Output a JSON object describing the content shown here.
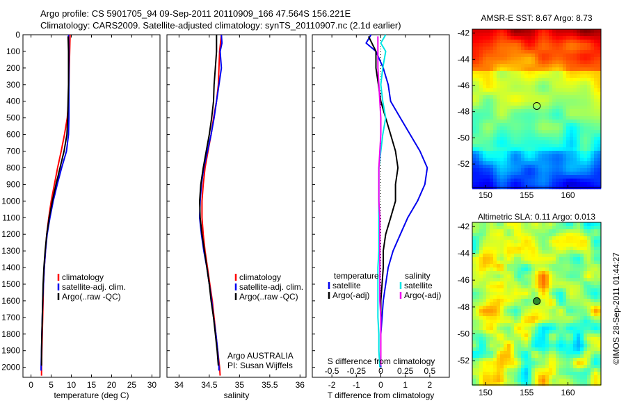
{
  "header": {
    "line1": "Argo profile: CS 5901705_94 09-Sep-2011 20110909_166 47.564S 156.221E",
    "line2": "Climatology: CARS2009. Satellite-adjusted climatology: synTS_20110907.nc (2.1d earlier)"
  },
  "chart_data": [
    {
      "type": "line",
      "xlabel": "temperature (deg C)",
      "ylabel": "",
      "xlim": [
        -2,
        32
      ],
      "ylim": [
        2060,
        0
      ],
      "x_ticks": [
        0,
        5,
        10,
        15,
        20,
        25,
        30
      ],
      "y_ticks": [
        0,
        100,
        200,
        300,
        400,
        500,
        600,
        700,
        800,
        900,
        1000,
        1100,
        1200,
        1300,
        1400,
        1500,
        1600,
        1700,
        1800,
        1900,
        2000
      ],
      "legend": [
        "climatology",
        "satellite-adj. clim.",
        "Argo(..raw -QC)"
      ],
      "legend_position": "lower-right",
      "series": [
        {
          "name": "climatology",
          "color": "#ff0000",
          "points": [
            [
              9.7,
              0
            ],
            [
              9.6,
              100
            ],
            [
              9.5,
              200
            ],
            [
              9.4,
              300
            ],
            [
              9.3,
              400
            ],
            [
              9.0,
              500
            ],
            [
              8.3,
              600
            ],
            [
              7.5,
              700
            ],
            [
              6.6,
              800
            ],
            [
              5.8,
              900
            ],
            [
              5.0,
              1000
            ],
            [
              4.4,
              1100
            ],
            [
              3.9,
              1200
            ],
            [
              3.6,
              1300
            ],
            [
              3.3,
              1400
            ],
            [
              3.1,
              1500
            ],
            [
              3.0,
              1600
            ],
            [
              2.9,
              1700
            ],
            [
              2.8,
              1800
            ],
            [
              2.7,
              1900
            ],
            [
              2.6,
              2000
            ],
            [
              2.6,
              2050
            ]
          ]
        },
        {
          "name": "satellite-adj. clim.",
          "color": "#0000ee",
          "points": [
            [
              9.3,
              0
            ],
            [
              9.4,
              100
            ],
            [
              9.4,
              200
            ],
            [
              9.4,
              300
            ],
            [
              9.4,
              400
            ],
            [
              9.4,
              500
            ],
            [
              9.3,
              600
            ],
            [
              8.8,
              700
            ],
            [
              7.6,
              800
            ],
            [
              6.5,
              900
            ],
            [
              5.5,
              1000
            ],
            [
              4.7,
              1100
            ],
            [
              4.0,
              1200
            ],
            [
              3.6,
              1300
            ],
            [
              3.3,
              1400
            ],
            [
              3.1,
              1500
            ],
            [
              2.9,
              1600
            ],
            [
              2.8,
              1700
            ],
            [
              2.7,
              1800
            ],
            [
              2.6,
              1900
            ],
            [
              2.5,
              2000
            ],
            [
              2.5,
              2020
            ]
          ]
        },
        {
          "name": "Argo(..raw -QC)",
          "color": "#000000",
          "points": [
            [
              9.2,
              10
            ],
            [
              9.3,
              100
            ],
            [
              9.3,
              200
            ],
            [
              9.3,
              300
            ],
            [
              9.2,
              400
            ],
            [
              9.1,
              500
            ],
            [
              8.9,
              600
            ],
            [
              8.2,
              700
            ],
            [
              7.2,
              800
            ],
            [
              6.2,
              900
            ],
            [
              5.3,
              1000
            ],
            [
              4.5,
              1100
            ],
            [
              3.9,
              1200
            ],
            [
              3.5,
              1300
            ],
            [
              3.2,
              1400
            ],
            [
              3.0,
              1500
            ],
            [
              2.9,
              1600
            ],
            [
              2.8,
              1700
            ],
            [
              2.7,
              1800
            ],
            [
              2.6,
              1900
            ],
            [
              2.6,
              1990
            ]
          ]
        }
      ]
    },
    {
      "type": "line",
      "xlabel": "salinity",
      "ylabel": "",
      "xlim": [
        33.8,
        36.1
      ],
      "ylim": [
        2060,
        0
      ],
      "x_ticks": [
        34,
        34.5,
        35,
        35.5,
        36
      ],
      "legend": [
        "climatology",
        "satellite-adj. clim.",
        "Argo(..raw -QC)"
      ],
      "legend_position": "lower-right",
      "annotation": [
        "Argo AUSTRALIA",
        "PI: Susan Wijffels"
      ],
      "series": [
        {
          "name": "climatology",
          "color": "#ff0000",
          "points": [
            [
              34.7,
              0
            ],
            [
              34.67,
              100
            ],
            [
              34.66,
              200
            ],
            [
              34.65,
              300
            ],
            [
              34.62,
              400
            ],
            [
              34.57,
              500
            ],
            [
              34.53,
              600
            ],
            [
              34.48,
              700
            ],
            [
              34.43,
              800
            ],
            [
              34.4,
              900
            ],
            [
              34.38,
              1000
            ],
            [
              34.38,
              1100
            ],
            [
              34.4,
              1200
            ],
            [
              34.43,
              1300
            ],
            [
              34.47,
              1400
            ],
            [
              34.51,
              1500
            ],
            [
              34.55,
              1600
            ],
            [
              34.58,
              1700
            ],
            [
              34.61,
              1800
            ],
            [
              34.64,
              1900
            ],
            [
              34.67,
              2000
            ],
            [
              34.68,
              2050
            ]
          ]
        },
        {
          "name": "satellite-adj. clim.",
          "color": "#0000ee",
          "points": [
            [
              34.7,
              0
            ],
            [
              34.71,
              50
            ],
            [
              34.68,
              100
            ],
            [
              34.7,
              200
            ],
            [
              34.66,
              300
            ],
            [
              34.62,
              400
            ],
            [
              34.58,
              500
            ],
            [
              34.53,
              600
            ],
            [
              34.47,
              700
            ],
            [
              34.41,
              800
            ],
            [
              34.37,
              900
            ],
            [
              34.35,
              1000
            ],
            [
              34.34,
              1100
            ],
            [
              34.37,
              1200
            ],
            [
              34.41,
              1300
            ],
            [
              34.46,
              1400
            ],
            [
              34.5,
              1500
            ],
            [
              34.54,
              1600
            ],
            [
              34.57,
              1700
            ],
            [
              34.61,
              1800
            ],
            [
              34.64,
              1900
            ],
            [
              34.66,
              2000
            ],
            [
              34.66,
              2020
            ]
          ]
        },
        {
          "name": "Argo(..raw -QC)",
          "color": "#000000",
          "points": [
            [
              34.62,
              0
            ],
            [
              34.62,
              100
            ],
            [
              34.6,
              200
            ],
            [
              34.58,
              300
            ],
            [
              34.57,
              400
            ],
            [
              34.54,
              500
            ],
            [
              34.5,
              600
            ],
            [
              34.45,
              700
            ],
            [
              34.4,
              800
            ],
            [
              34.36,
              900
            ],
            [
              34.34,
              1000
            ],
            [
              34.35,
              1100
            ],
            [
              34.38,
              1200
            ],
            [
              34.42,
              1300
            ],
            [
              34.46,
              1400
            ],
            [
              34.5,
              1500
            ],
            [
              34.53,
              1600
            ],
            [
              34.57,
              1700
            ],
            [
              34.6,
              1800
            ],
            [
              34.63,
              1900
            ],
            [
              34.65,
              1990
            ]
          ]
        }
      ]
    },
    {
      "type": "line",
      "xlabel": "T difference from climatology",
      "x2label": "S difference from climatology",
      "xlim": [
        -2.8,
        2.8
      ],
      "x_ticks": [
        -2,
        -1,
        0,
        1,
        2
      ],
      "x2lim": [
        -0.7,
        0.7
      ],
      "x2_ticks": [
        -0.5,
        -0.25,
        0,
        0.25,
        0.5
      ],
      "ylim": [
        2060,
        0
      ],
      "legend_temperature": {
        "title": "temperature",
        "entries": [
          "satellite",
          "Argo(-adj)"
        ]
      },
      "legend_salinity": {
        "title": "salinity",
        "entries": [
          "satellite",
          "Argo(-adj)"
        ]
      },
      "legend_position": "lower-center",
      "series": [
        {
          "name": "satellite",
          "color": "#0000ee",
          "points": [
            [
              -0.4,
              0
            ],
            [
              -0.6,
              50
            ],
            [
              -0.2,
              100
            ],
            [
              0.1,
              200
            ],
            [
              0.3,
              300
            ],
            [
              0.4,
              400
            ],
            [
              0.8,
              500
            ],
            [
              1.2,
              600
            ],
            [
              1.6,
              700
            ],
            [
              1.9,
              800
            ],
            [
              1.8,
              900
            ],
            [
              1.5,
              1000
            ],
            [
              1.1,
              1100
            ],
            [
              0.8,
              1200
            ],
            [
              0.5,
              1300
            ],
            [
              0.3,
              1400
            ],
            [
              0.2,
              1500
            ],
            [
              0.1,
              1600
            ],
            [
              0.05,
              1700
            ],
            [
              0.0,
              1800
            ],
            [
              0.0,
              1900
            ],
            [
              0.0,
              2000
            ]
          ]
        },
        {
          "name": "Argo(-adj)",
          "color": "#000000",
          "points": [
            [
              -0.5,
              10
            ],
            [
              -0.2,
              100
            ],
            [
              -0.2,
              200
            ],
            [
              -0.1,
              300
            ],
            [
              0.0,
              400
            ],
            [
              0.2,
              500
            ],
            [
              0.4,
              600
            ],
            [
              0.6,
              700
            ],
            [
              0.7,
              800
            ],
            [
              0.6,
              900
            ],
            [
              0.6,
              1000
            ],
            [
              0.4,
              1100
            ],
            [
              0.2,
              1200
            ],
            [
              0.1,
              1300
            ],
            [
              0.1,
              1400
            ],
            [
              0.05,
              1500
            ],
            [
              0.0,
              1600
            ],
            [
              0.0,
              1700
            ],
            [
              0.0,
              1800
            ],
            [
              0.0,
              1900
            ],
            [
              0.0,
              1990
            ]
          ]
        },
        {
          "name": "satellite",
          "color": "#00e5e5",
          "points": [
            [
              0.05,
              0
            ],
            [
              0.0,
              50
            ],
            [
              0.05,
              100
            ],
            [
              0.02,
              200
            ],
            [
              0.0,
              300
            ],
            [
              0.02,
              400
            ],
            [
              0.05,
              500
            ],
            [
              0.02,
              600
            ],
            [
              0.0,
              700
            ],
            [
              -0.02,
              800
            ],
            [
              -0.02,
              900
            ],
            [
              -0.02,
              1000
            ],
            [
              -0.02,
              1100
            ],
            [
              -0.02,
              1200
            ],
            [
              -0.02,
              1300
            ],
            [
              -0.03,
              1400
            ],
            [
              -0.03,
              1500
            ],
            [
              -0.03,
              1600
            ],
            [
              -0.03,
              1700
            ],
            [
              -0.02,
              1800
            ],
            [
              -0.02,
              1900
            ],
            [
              -0.01,
              2000
            ]
          ]
        },
        {
          "name": "Argo(-adj)",
          "color": "#ee00ee",
          "points": [
            [
              -0.03,
              10
            ],
            [
              -0.03,
              100
            ],
            [
              -0.03,
              200
            ],
            [
              -0.02,
              300
            ],
            [
              -0.01,
              400
            ],
            [
              0.0,
              500
            ],
            [
              0.0,
              600
            ],
            [
              -0.01,
              700
            ],
            [
              -0.02,
              800
            ],
            [
              -0.02,
              900
            ],
            [
              -0.02,
              1000
            ],
            [
              -0.01,
              1100
            ],
            [
              -0.01,
              1200
            ],
            [
              -0.01,
              1300
            ],
            [
              -0.01,
              1400
            ],
            [
              -0.01,
              1500
            ],
            [
              -0.01,
              1600
            ],
            [
              0.0,
              1700
            ],
            [
              0.0,
              1800
            ],
            [
              0.0,
              1900
            ],
            [
              0.0,
              1990
            ]
          ]
        }
      ]
    },
    {
      "type": "heatmap",
      "title": "AMSR-E SST: 8.67 Argo: 8.73",
      "xlim": [
        148.4,
        164
      ],
      "ylim": [
        -53.8,
        -41.7
      ],
      "x_ticks": [
        150,
        155,
        160
      ],
      "y_ticks": [
        -42,
        -44,
        -46,
        -48,
        -50,
        -52
      ],
      "marker": {
        "lon": 156.221,
        "lat": -47.564
      }
    },
    {
      "type": "heatmap",
      "title": "Altimetric SLA: 0.11 Argo: 0.013",
      "xlim": [
        148.4,
        164
      ],
      "ylim": [
        -53.8,
        -41.7
      ],
      "x_ticks": [
        150,
        155,
        160
      ],
      "y_ticks": [
        -42,
        -44,
        -46,
        -48,
        -50,
        -52
      ],
      "marker": {
        "lon": 156.221,
        "lat": -47.564
      }
    }
  ],
  "credit": "©IMOS 28-Sep-2011 01:44:27",
  "colors": {
    "climatology": "#ff0000",
    "satellite_adj": "#0000ee",
    "argo": "#000000",
    "salinity_satellite": "#00e5e5",
    "salinity_argo": "#ee00ee"
  }
}
